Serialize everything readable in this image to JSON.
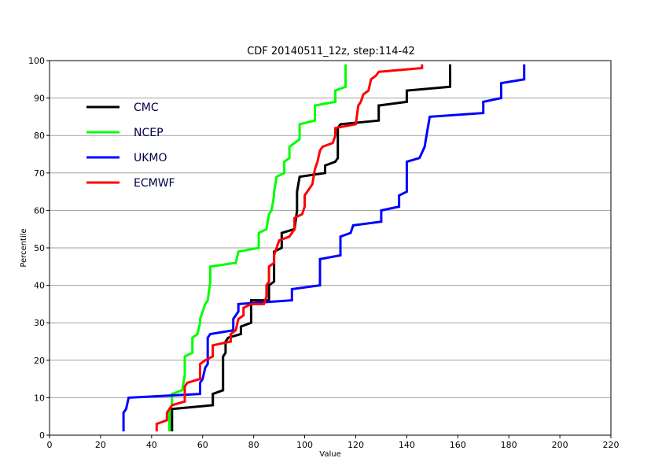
{
  "chart_data": {
    "type": "line",
    "title": "CDF 20140511_12z, step:114-42",
    "xlabel": "Value",
    "ylabel": "Percentile",
    "xlim": [
      0,
      220
    ],
    "ylim": [
      0,
      100
    ],
    "xticks": [
      0,
      20,
      40,
      60,
      80,
      100,
      120,
      140,
      160,
      180,
      200,
      220
    ],
    "yticks": [
      0,
      10,
      20,
      30,
      40,
      50,
      60,
      70,
      80,
      90,
      100
    ],
    "grid": "horizontal",
    "legend_position": "top-left",
    "series": [
      {
        "name": "CMC",
        "color": "#000000",
        "points": [
          [
            48,
            1
          ],
          [
            48,
            7
          ],
          [
            64,
            8
          ],
          [
            64,
            11
          ],
          [
            68,
            12
          ],
          [
            68,
            21
          ],
          [
            69,
            22
          ],
          [
            69,
            25
          ],
          [
            70,
            26
          ],
          [
            75,
            27
          ],
          [
            75,
            29
          ],
          [
            79,
            30
          ],
          [
            79,
            36
          ],
          [
            84,
            36
          ],
          [
            86,
            36
          ],
          [
            86,
            40
          ],
          [
            88,
            41
          ],
          [
            88,
            49
          ],
          [
            91,
            50
          ],
          [
            91,
            54
          ],
          [
            96,
            55
          ],
          [
            97,
            60
          ],
          [
            97,
            65
          ],
          [
            98,
            69
          ],
          [
            108,
            70
          ],
          [
            108,
            72
          ],
          [
            112,
            73
          ],
          [
            113,
            74
          ],
          [
            113,
            82
          ],
          [
            114,
            83
          ],
          [
            129,
            84
          ],
          [
            129,
            88
          ],
          [
            140,
            89
          ],
          [
            140,
            92
          ],
          [
            157,
            93
          ],
          [
            157,
            99
          ]
        ]
      },
      {
        "name": "NCEP",
        "color": "#00ff00",
        "points": [
          [
            47,
            1
          ],
          [
            47,
            7
          ],
          [
            48,
            8
          ],
          [
            48,
            11
          ],
          [
            52,
            12
          ],
          [
            53,
            16
          ],
          [
            53,
            21
          ],
          [
            56,
            22
          ],
          [
            56,
            26
          ],
          [
            58,
            27
          ],
          [
            59,
            30
          ],
          [
            59,
            31
          ],
          [
            61,
            35
          ],
          [
            62,
            36
          ],
          [
            63,
            41
          ],
          [
            63,
            45
          ],
          [
            73,
            46
          ],
          [
            74,
            49
          ],
          [
            82,
            50
          ],
          [
            82,
            54
          ],
          [
            85,
            55
          ],
          [
            86,
            59
          ],
          [
            87,
            60
          ],
          [
            88,
            64
          ],
          [
            88,
            65
          ],
          [
            89,
            69
          ],
          [
            92,
            70
          ],
          [
            92,
            73
          ],
          [
            94,
            74
          ],
          [
            94,
            77
          ],
          [
            98,
            79
          ],
          [
            98,
            83
          ],
          [
            104,
            84
          ],
          [
            104,
            88
          ],
          [
            112,
            89
          ],
          [
            112,
            92
          ],
          [
            116,
            93
          ],
          [
            116,
            99
          ]
        ]
      },
      {
        "name": "UKMO",
        "color": "#0000ff",
        "points": [
          [
            29,
            1
          ],
          [
            29,
            6
          ],
          [
            30,
            7
          ],
          [
            31,
            10
          ],
          [
            59,
            11
          ],
          [
            59,
            14
          ],
          [
            60,
            15
          ],
          [
            61,
            18
          ],
          [
            62,
            19
          ],
          [
            62,
            26
          ],
          [
            63,
            27
          ],
          [
            72,
            28
          ],
          [
            72,
            31
          ],
          [
            74,
            33
          ],
          [
            74,
            35
          ],
          [
            95,
            36
          ],
          [
            95,
            39
          ],
          [
            106,
            40
          ],
          [
            106,
            47
          ],
          [
            114,
            48
          ],
          [
            114,
            53
          ],
          [
            118,
            54
          ],
          [
            119,
            56
          ],
          [
            130,
            57
          ],
          [
            130,
            60
          ],
          [
            137,
            61
          ],
          [
            137,
            64
          ],
          [
            140,
            65
          ],
          [
            140,
            73
          ],
          [
            145,
            74
          ],
          [
            147,
            77
          ],
          [
            148,
            81
          ],
          [
            149,
            85
          ],
          [
            170,
            86
          ],
          [
            170,
            89
          ],
          [
            177,
            90
          ],
          [
            177,
            94
          ],
          [
            186,
            95
          ],
          [
            186,
            99
          ]
        ]
      },
      {
        "name": "ECMWF",
        "color": "#ff0000",
        "points": [
          [
            42,
            1
          ],
          [
            42,
            3
          ],
          [
            46,
            4
          ],
          [
            46,
            6
          ],
          [
            47,
            7
          ],
          [
            48,
            8
          ],
          [
            53,
            9
          ],
          [
            53,
            13
          ],
          [
            54,
            14
          ],
          [
            59,
            15
          ],
          [
            59,
            19
          ],
          [
            61,
            20
          ],
          [
            64,
            21
          ],
          [
            64,
            24
          ],
          [
            71,
            25
          ],
          [
            71,
            27
          ],
          [
            73,
            28
          ],
          [
            74,
            31
          ],
          [
            76,
            32
          ],
          [
            76,
            34
          ],
          [
            79,
            35
          ],
          [
            84,
            35
          ],
          [
            85,
            37
          ],
          [
            85,
            40
          ],
          [
            86,
            41
          ],
          [
            86,
            45
          ],
          [
            88,
            46
          ],
          [
            88,
            48
          ],
          [
            89,
            50
          ],
          [
            90,
            52
          ],
          [
            94,
            53
          ],
          [
            95,
            54
          ],
          [
            96,
            55
          ],
          [
            96,
            58
          ],
          [
            99,
            59
          ],
          [
            100,
            61
          ],
          [
            100,
            64
          ],
          [
            101,
            65
          ],
          [
            103,
            67
          ],
          [
            104,
            71
          ],
          [
            105,
            73
          ],
          [
            106,
            76
          ],
          [
            107,
            77
          ],
          [
            111,
            78
          ],
          [
            112,
            80
          ],
          [
            112,
            82
          ],
          [
            120,
            83
          ],
          [
            121,
            88
          ],
          [
            122,
            89
          ],
          [
            123,
            91
          ],
          [
            125,
            92
          ],
          [
            126,
            95
          ],
          [
            128,
            96
          ],
          [
            129,
            97
          ],
          [
            146,
            98
          ],
          [
            146,
            99
          ]
        ]
      }
    ]
  }
}
